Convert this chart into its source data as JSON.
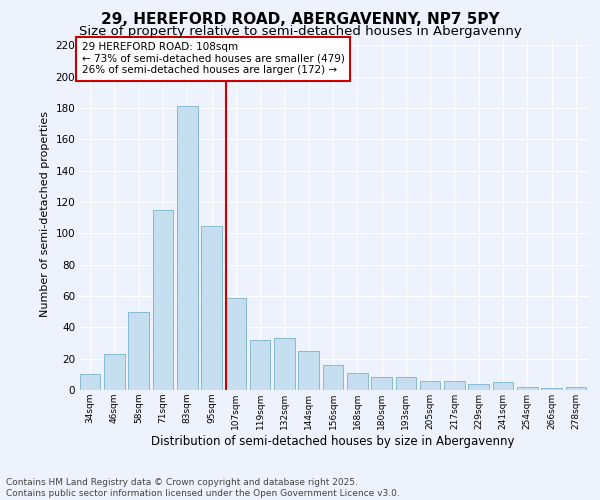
{
  "title": "29, HEREFORD ROAD, ABERGAVENNY, NP7 5PY",
  "subtitle": "Size of property relative to semi-detached houses in Abergavenny",
  "xlabel": "Distribution of semi-detached houses by size in Abergavenny",
  "ylabel": "Number of semi-detached properties",
  "categories": [
    "34sqm",
    "46sqm",
    "58sqm",
    "71sqm",
    "83sqm",
    "95sqm",
    "107sqm",
    "119sqm",
    "132sqm",
    "144sqm",
    "156sqm",
    "168sqm",
    "180sqm",
    "193sqm",
    "205sqm",
    "217sqm",
    "229sqm",
    "241sqm",
    "254sqm",
    "266sqm",
    "278sqm"
  ],
  "values": [
    10,
    23,
    50,
    115,
    181,
    105,
    59,
    32,
    33,
    25,
    16,
    11,
    8,
    8,
    6,
    6,
    4,
    5,
    2,
    1,
    2
  ],
  "bar_color": "#c5dff0",
  "bar_edgecolor": "#7ab3d0",
  "vline_color": "#cc0000",
  "annotation_text": "29 HEREFORD ROAD: 108sqm\n← 73% of semi-detached houses are smaller (479)\n26% of semi-detached houses are larger (172) →",
  "annotation_box_edgecolor": "#cc0000",
  "ylim": [
    0,
    225
  ],
  "yticks": [
    0,
    20,
    40,
    60,
    80,
    100,
    120,
    140,
    160,
    180,
    200,
    220
  ],
  "bg_color": "#eef2fc",
  "grid_color": "#ffffff",
  "footer": "Contains HM Land Registry data © Crown copyright and database right 2025.\nContains public sector information licensed under the Open Government Licence v3.0.",
  "title_fontsize": 11,
  "subtitle_fontsize": 9.5,
  "annotation_fontsize": 7.5,
  "footer_fontsize": 6.5,
  "ylabel_fontsize": 8,
  "xlabel_fontsize": 8.5
}
